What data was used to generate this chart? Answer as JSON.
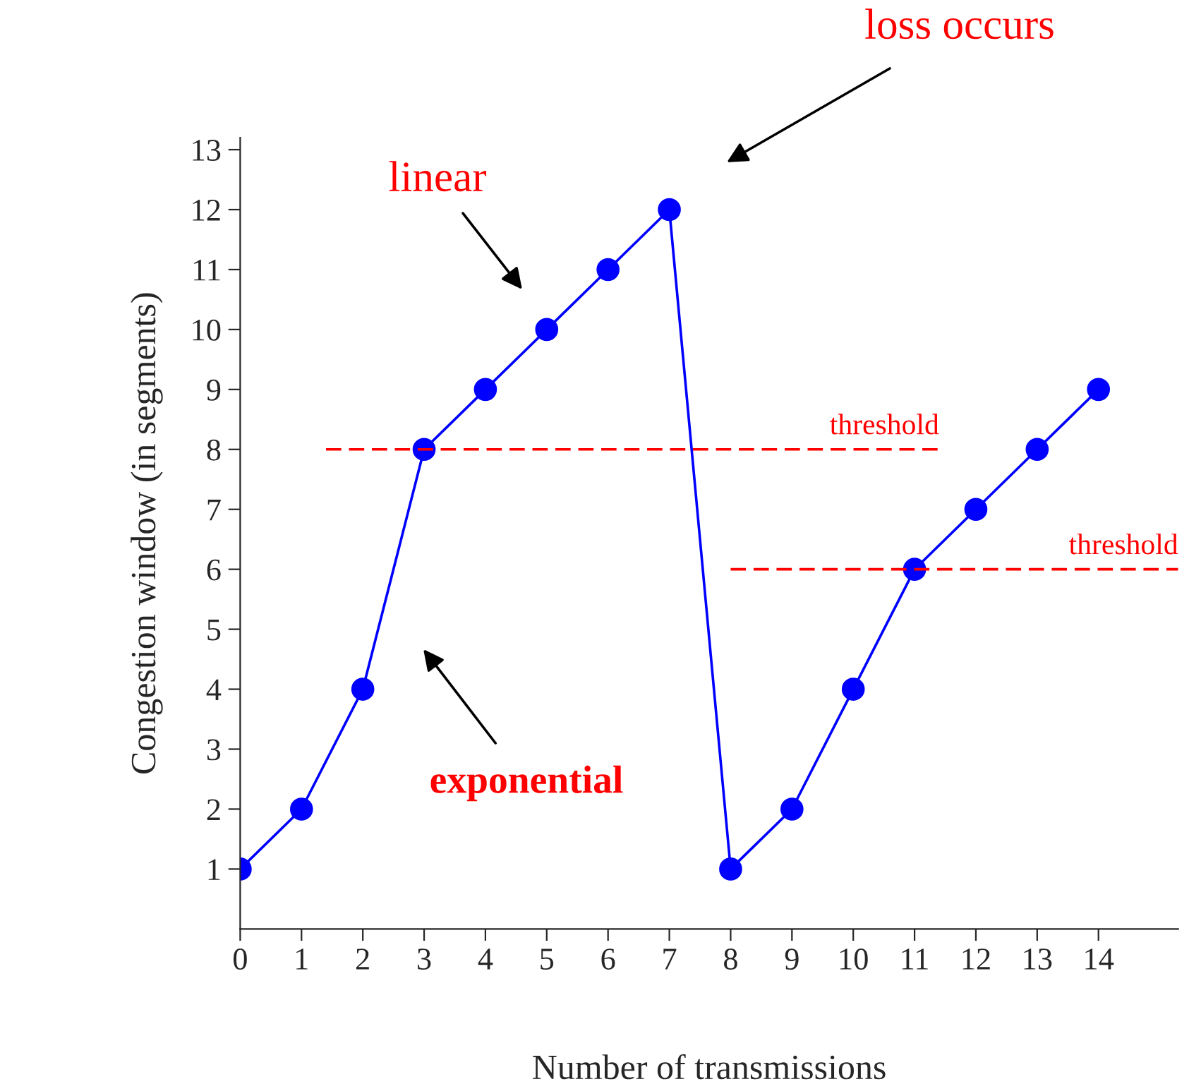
{
  "chart_data": {
    "type": "line",
    "xlabel": "Number of transmissions",
    "ylabel": "Congestion window (in segments)",
    "x": [
      0,
      1,
      2,
      3,
      4,
      5,
      6,
      7,
      8,
      9,
      10,
      11,
      12,
      13,
      14
    ],
    "series": [
      {
        "color": "#0000ff",
        "values": [
          1,
          2,
          4,
          8,
          9,
          10,
          11,
          12,
          1,
          2,
          4,
          6,
          7,
          8,
          9
        ],
        "marker": "circle",
        "line_style": "solid"
      },
      {
        "name": "threshold",
        "color": "#ff0000",
        "x": [
          1.4,
          11.4
        ],
        "values": [
          8,
          8
        ],
        "marker": "none",
        "line_style": "dashed"
      },
      {
        "name": "threshold",
        "color": "#ff0000",
        "x": [
          8,
          15.3
        ],
        "values": [
          6,
          6
        ],
        "marker": "none",
        "line_style": "dashed"
      }
    ],
    "annotations": [
      "linear",
      "loss occurs",
      "exponential"
    ],
    "xlim": [
      0,
      15.3
    ],
    "ylim": [
      0,
      13.2
    ],
    "xticks": [
      0,
      1,
      2,
      3,
      4,
      5,
      6,
      7,
      8,
      9,
      10,
      11,
      12,
      13,
      14
    ],
    "yticks": [
      1,
      2,
      3,
      4,
      5,
      6,
      7,
      8,
      9,
      10,
      11,
      12,
      13
    ],
    "grid": false
  }
}
